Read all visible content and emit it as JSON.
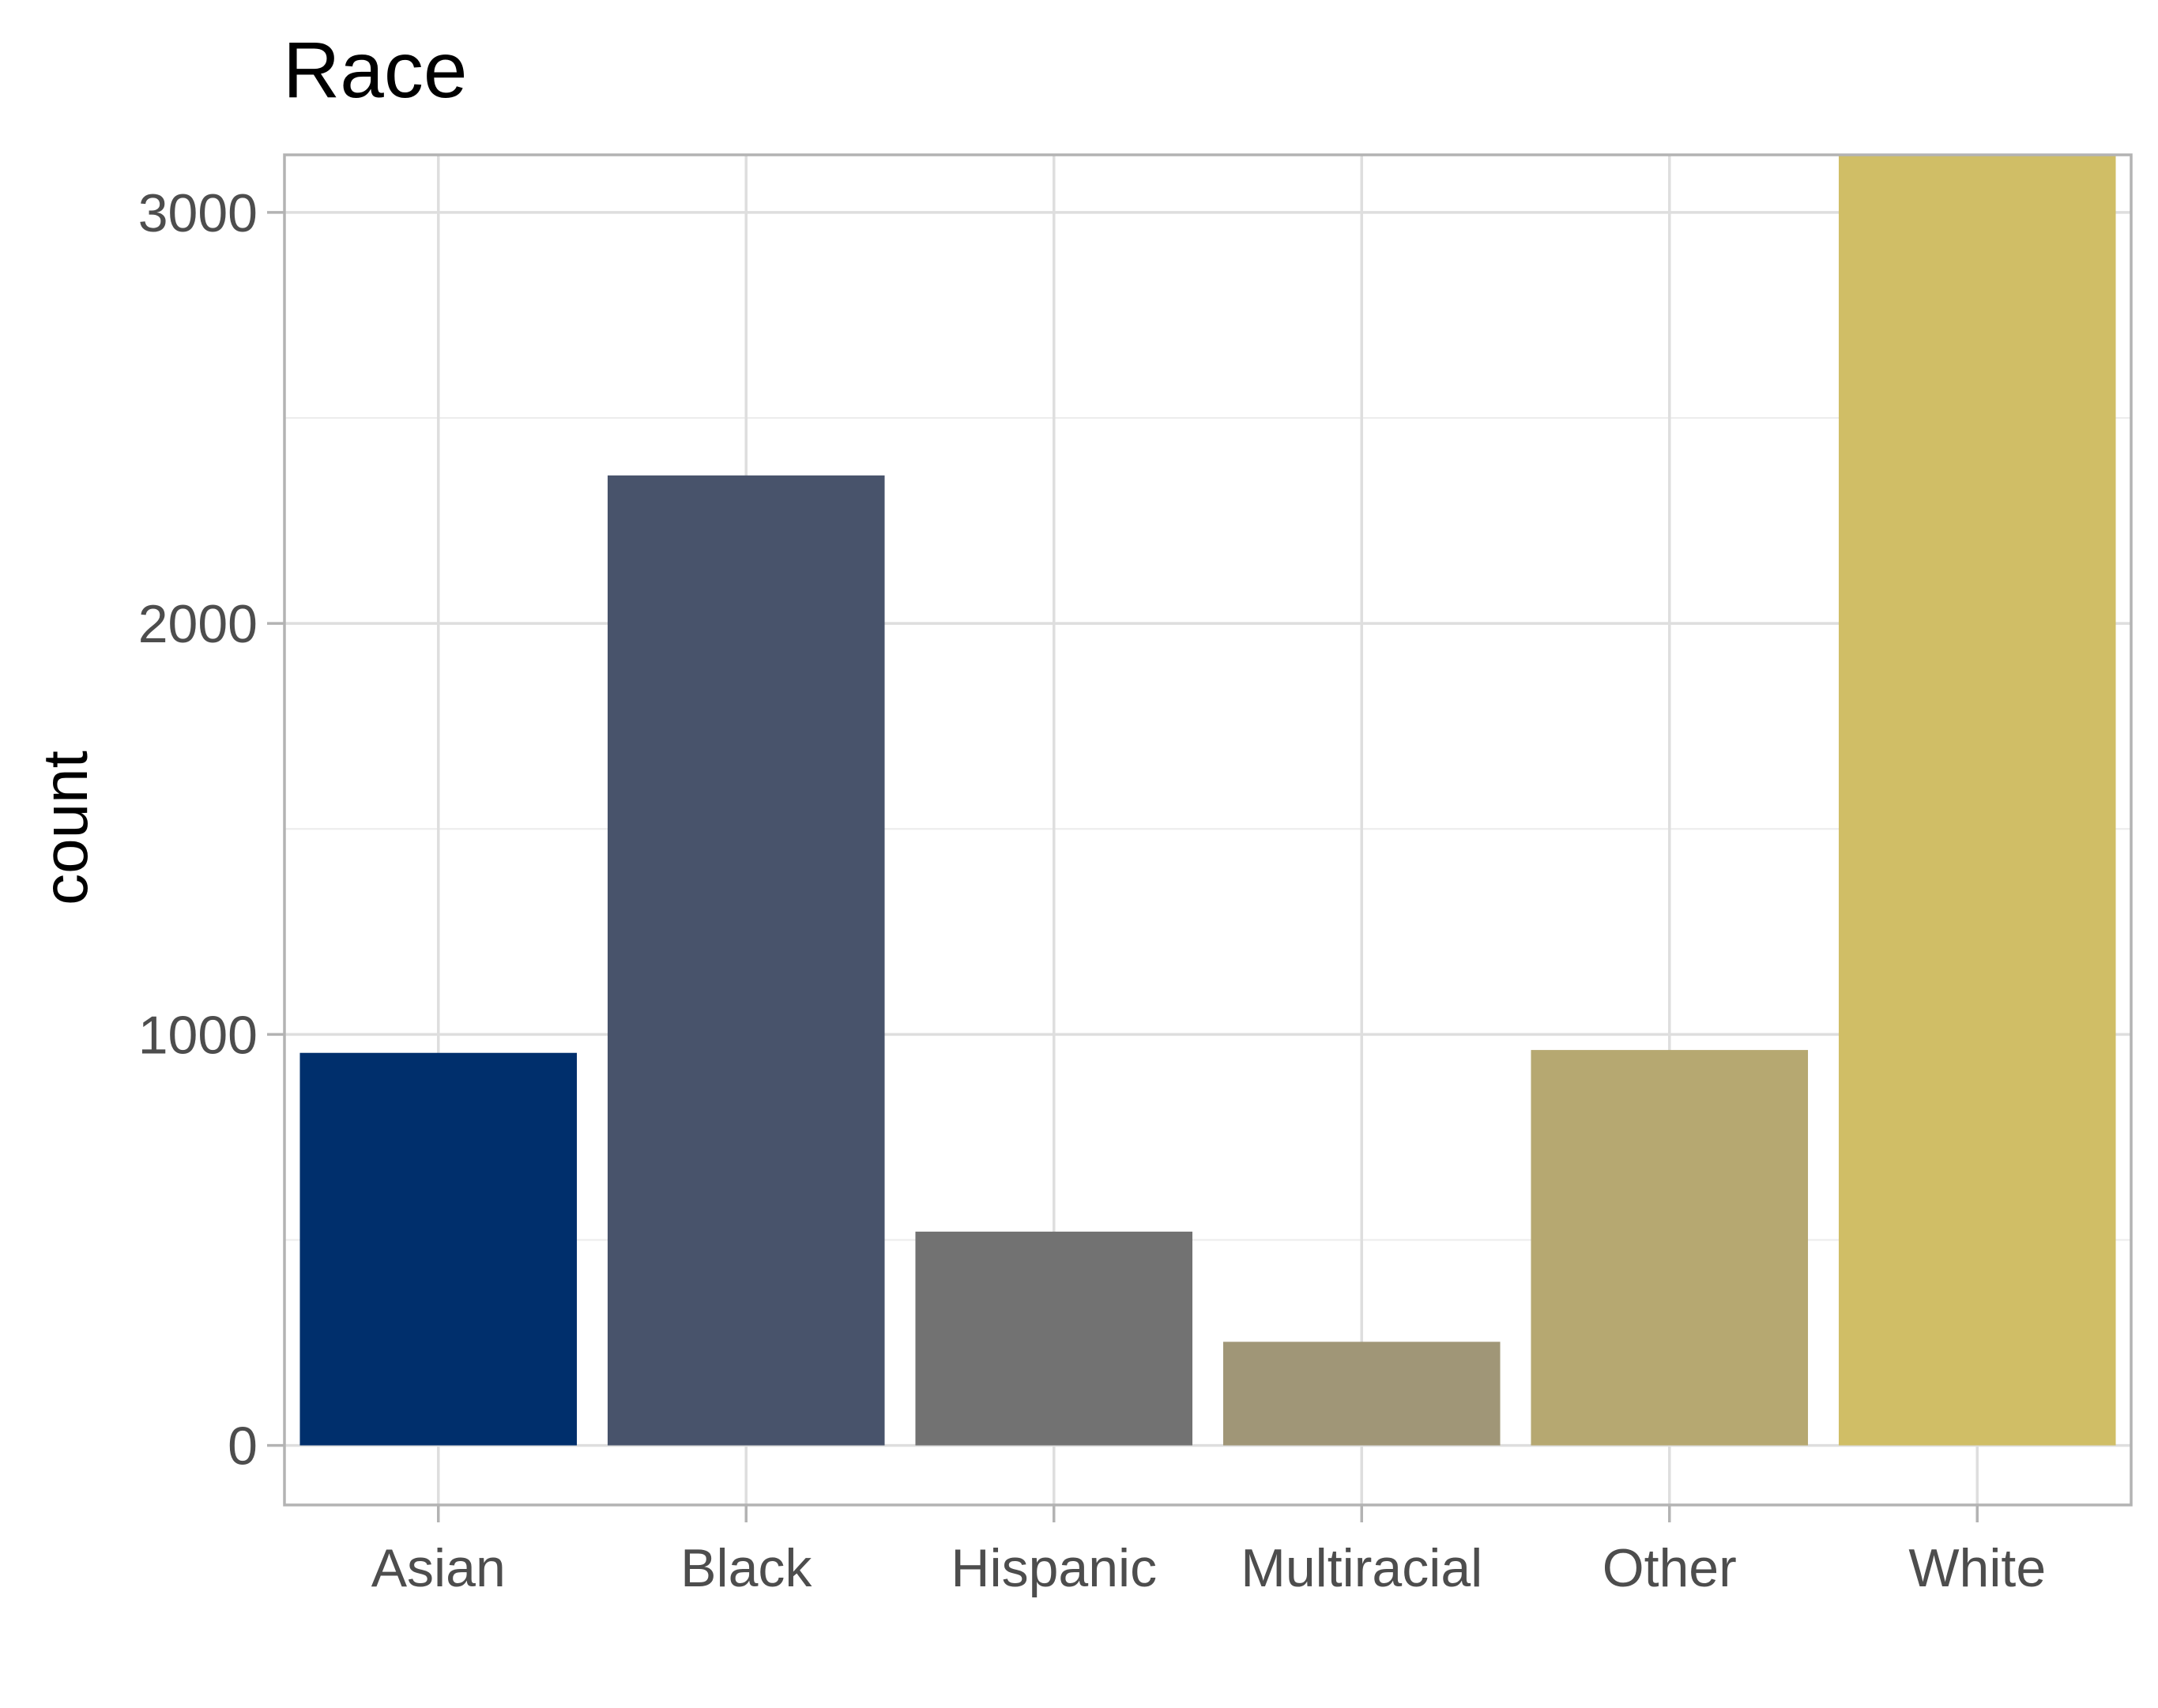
{
  "chart_data": {
    "type": "bar",
    "title": "Race",
    "xlabel": "",
    "ylabel": "count",
    "categories": [
      "Asian",
      "Black",
      "Hispanic",
      "Multiracial",
      "Other",
      "White"
    ],
    "values": [
      955,
      2360,
      520,
      252,
      962,
      3150
    ],
    "colors": [
      "#002F6C",
      "#48536B",
      "#727272",
      "#A09677",
      "#B6A871",
      "#D0BE66"
    ],
    "ylim": [
      -145,
      3140
    ],
    "yticks": [
      0,
      1000,
      2000,
      3000
    ],
    "ytick_labels": [
      "0",
      "1000",
      "2000",
      "3000"
    ],
    "grid": true,
    "legend": "none"
  }
}
